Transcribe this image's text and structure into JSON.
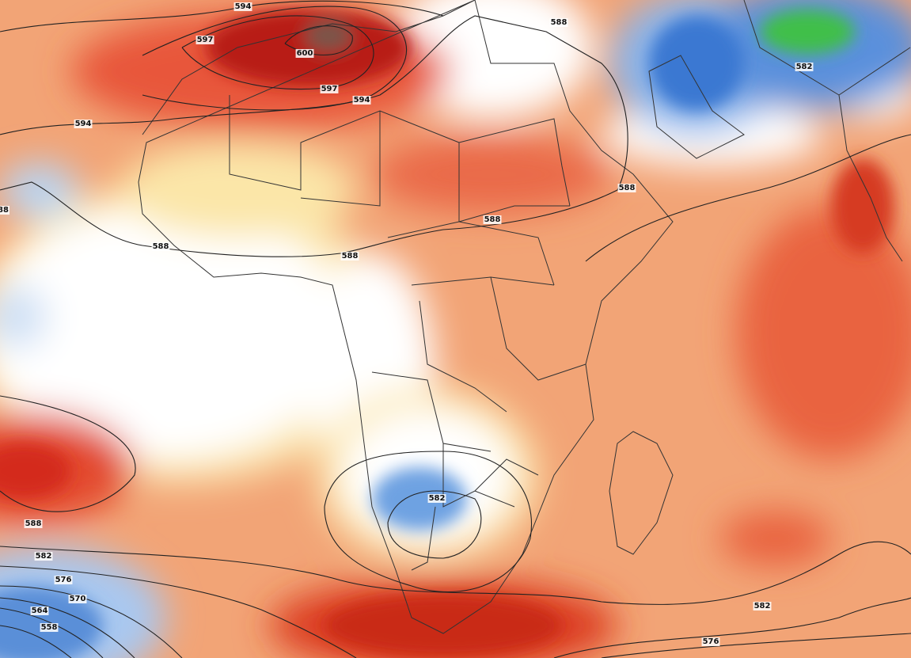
{
  "contour_labels": [
    "594",
    "597",
    "600",
    "597",
    "594",
    "588",
    "582",
    "594",
    "588",
    "88",
    "588",
    "588",
    "588",
    "582",
    "588",
    "582",
    "576",
    "570",
    "564",
    "558",
    "582",
    "576"
  ]
}
